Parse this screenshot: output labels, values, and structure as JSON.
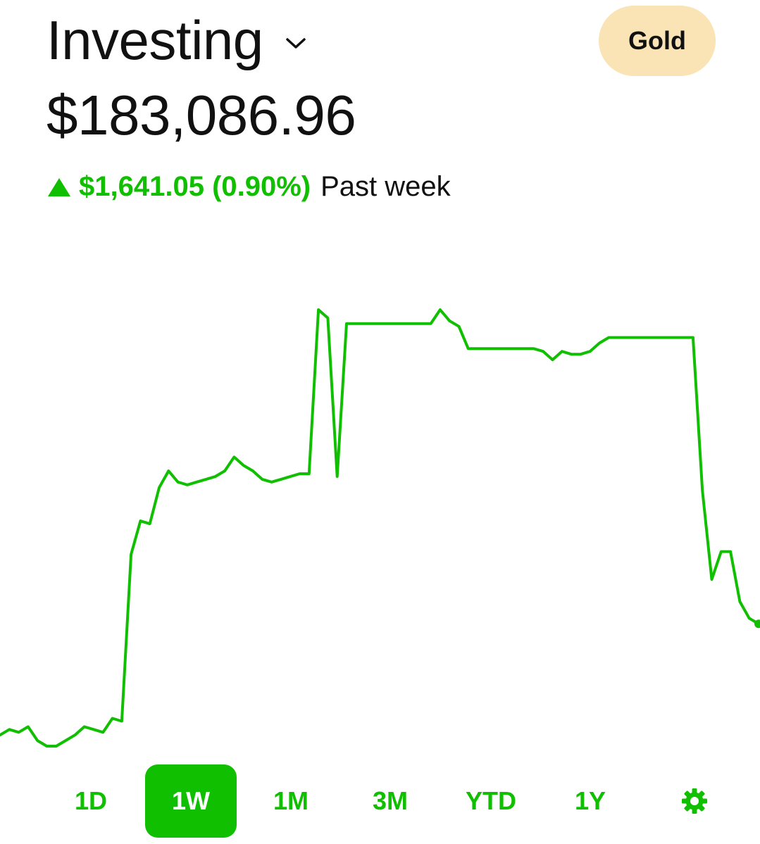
{
  "header": {
    "title": "Investing",
    "chevron_icon": "chevron-down-icon",
    "gold_label": "Gold",
    "gold_color": "#fae3b4"
  },
  "portfolio": {
    "value": "$183,086.96",
    "change_icon": "triangle-up-icon",
    "change": "$1,641.05 (0.90%)",
    "period": "Past week"
  },
  "colors": {
    "accent": "#10c000",
    "text": "#111111",
    "background": "#ffffff"
  },
  "chart_data": {
    "type": "line",
    "range": "1W",
    "grid": false,
    "axes_visible": false,
    "series": [
      {
        "values": [
          0.07,
          0.09,
          0.08,
          0.1,
          0.05,
          0.03,
          0.03,
          0.05,
          0.07,
          0.1,
          0.09,
          0.08,
          0.13,
          0.12,
          0.72,
          0.84,
          0.83,
          0.96,
          1.02,
          0.98,
          0.97,
          0.98,
          0.99,
          1.0,
          1.02,
          1.07,
          1.04,
          1.02,
          0.99,
          0.98,
          0.99,
          1.0,
          1.01,
          1.01,
          1.6,
          1.57,
          1.0,
          1.55,
          1.55,
          1.55,
          1.55,
          1.55,
          1.55,
          1.55,
          1.55,
          1.55,
          1.55,
          1.6,
          1.56,
          1.54,
          1.46,
          1.46,
          1.46,
          1.46,
          1.46,
          1.46,
          1.46,
          1.46,
          1.45,
          1.42,
          1.45,
          1.44,
          1.44,
          1.45,
          1.48,
          1.5,
          1.5,
          1.5,
          1.5,
          1.5,
          1.5,
          1.5,
          1.5,
          1.5,
          1.5,
          0.95,
          0.63,
          0.73,
          0.73,
          0.55,
          0.49,
          0.47
        ]
      }
    ]
  },
  "range_selector": {
    "options": [
      "1D",
      "1W",
      "1M",
      "3M",
      "YTD",
      "1Y"
    ],
    "selected": "1W",
    "settings_icon": "gear-icon"
  }
}
